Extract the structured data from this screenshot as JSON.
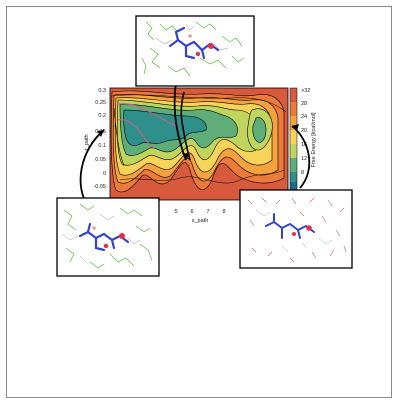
{
  "figure": {
    "y_axis_label": "r_path",
    "x_axis_label": "s_path",
    "y_ticks": [
      "0.3",
      "0.25",
      "0.2",
      "0.15",
      "0.1",
      "0.05",
      "0",
      "-0.05"
    ],
    "x_ticks": [
      "5",
      "6",
      "7",
      "8"
    ],
    "colorbar": {
      "label": "Free Energy [kcal/mol]",
      "ticks": [
        ">32",
        "28",
        "24",
        "20",
        "16",
        "12",
        "8"
      ],
      "colors": [
        "#d75a3c",
        "#ec7a3a",
        "#f5a23f",
        "#f7d35a",
        "#bfd55e",
        "#5fae7a",
        "#2f8f8a",
        "#1f6a8c"
      ]
    },
    "insets": [
      {
        "position": "top",
        "content": "ligand-in-binding-pocket-structure"
      },
      {
        "position": "left",
        "content": "ligand-bound-state-structure"
      },
      {
        "position": "right",
        "content": "ligand-in-solvent-structure"
      }
    ]
  }
}
